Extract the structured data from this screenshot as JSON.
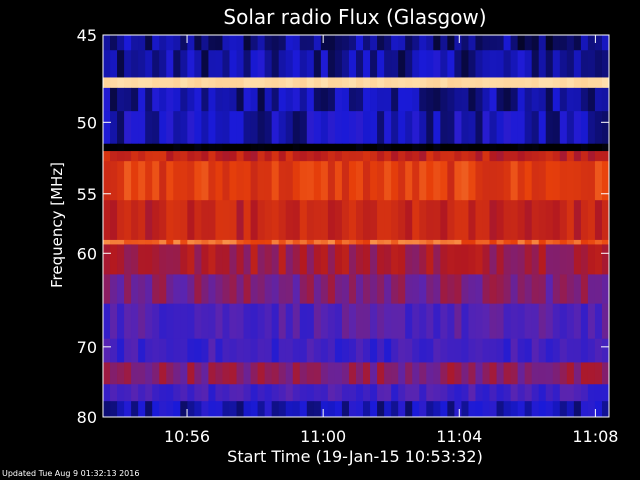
{
  "footer": {
    "updated": "Updated Tue Aug  9 01:32:13 2016"
  },
  "chart_data": {
    "type": "heatmap",
    "title": "Solar radio Flux (Glasgow)",
    "xlabel": "Start Time (19-Jan-15 10:53:32)",
    "ylabel": "Frequency [MHz]",
    "x_ticks": [
      "10:56",
      "11:00",
      "11:04",
      "11:08"
    ],
    "x_tick_minutes": [
      56,
      60,
      64,
      68
    ],
    "xlim_minutes": [
      53.53,
      68.4
    ],
    "y_ticks": [
      "45",
      "50",
      "55",
      "60",
      "70",
      "80"
    ],
    "y_tick_values": [
      45,
      50,
      55,
      60,
      70,
      80
    ],
    "ylim": [
      45,
      80
    ],
    "y_scale": "reciprocal",
    "y_inverted": true,
    "grid": false,
    "colormap": [
      "#000000",
      "#1a1ad8",
      "#5a24b0",
      "#b21820",
      "#e8400a",
      "#ffb060",
      "#ffffe0"
    ],
    "frequency_bands": [
      {
        "mhz": [
          45,
          45.8
        ],
        "level": 0.1
      },
      {
        "mhz": [
          45.8,
          47.3
        ],
        "level": 0.12
      },
      {
        "mhz": [
          47.3,
          47.9
        ],
        "level": 0.92
      },
      {
        "mhz": [
          47.9,
          49.3
        ],
        "level": 0.12
      },
      {
        "mhz": [
          49.3,
          51.4
        ],
        "level": 0.14
      },
      {
        "mhz": [
          51.4,
          51.9
        ],
        "level": 0.0
      },
      {
        "mhz": [
          51.9,
          52.6
        ],
        "level": 0.55
      },
      {
        "mhz": [
          52.6,
          55.5
        ],
        "level": 0.64
      },
      {
        "mhz": [
          55.5,
          58.8
        ],
        "level": 0.55
      },
      {
        "mhz": [
          58.8,
          59.2
        ],
        "level": 0.72
      },
      {
        "mhz": [
          59.2,
          62
        ],
        "level": 0.48
      },
      {
        "mhz": [
          62,
          65
        ],
        "level": 0.4
      },
      {
        "mhz": [
          65,
          69
        ],
        "level": 0.3
      },
      {
        "mhz": [
          69,
          72
        ],
        "level": 0.26
      },
      {
        "mhz": [
          72,
          75
        ],
        "level": 0.42
      },
      {
        "mhz": [
          75,
          77.5
        ],
        "level": 0.27
      },
      {
        "mhz": [
          77.5,
          80
        ],
        "level": 0.15
      }
    ]
  }
}
